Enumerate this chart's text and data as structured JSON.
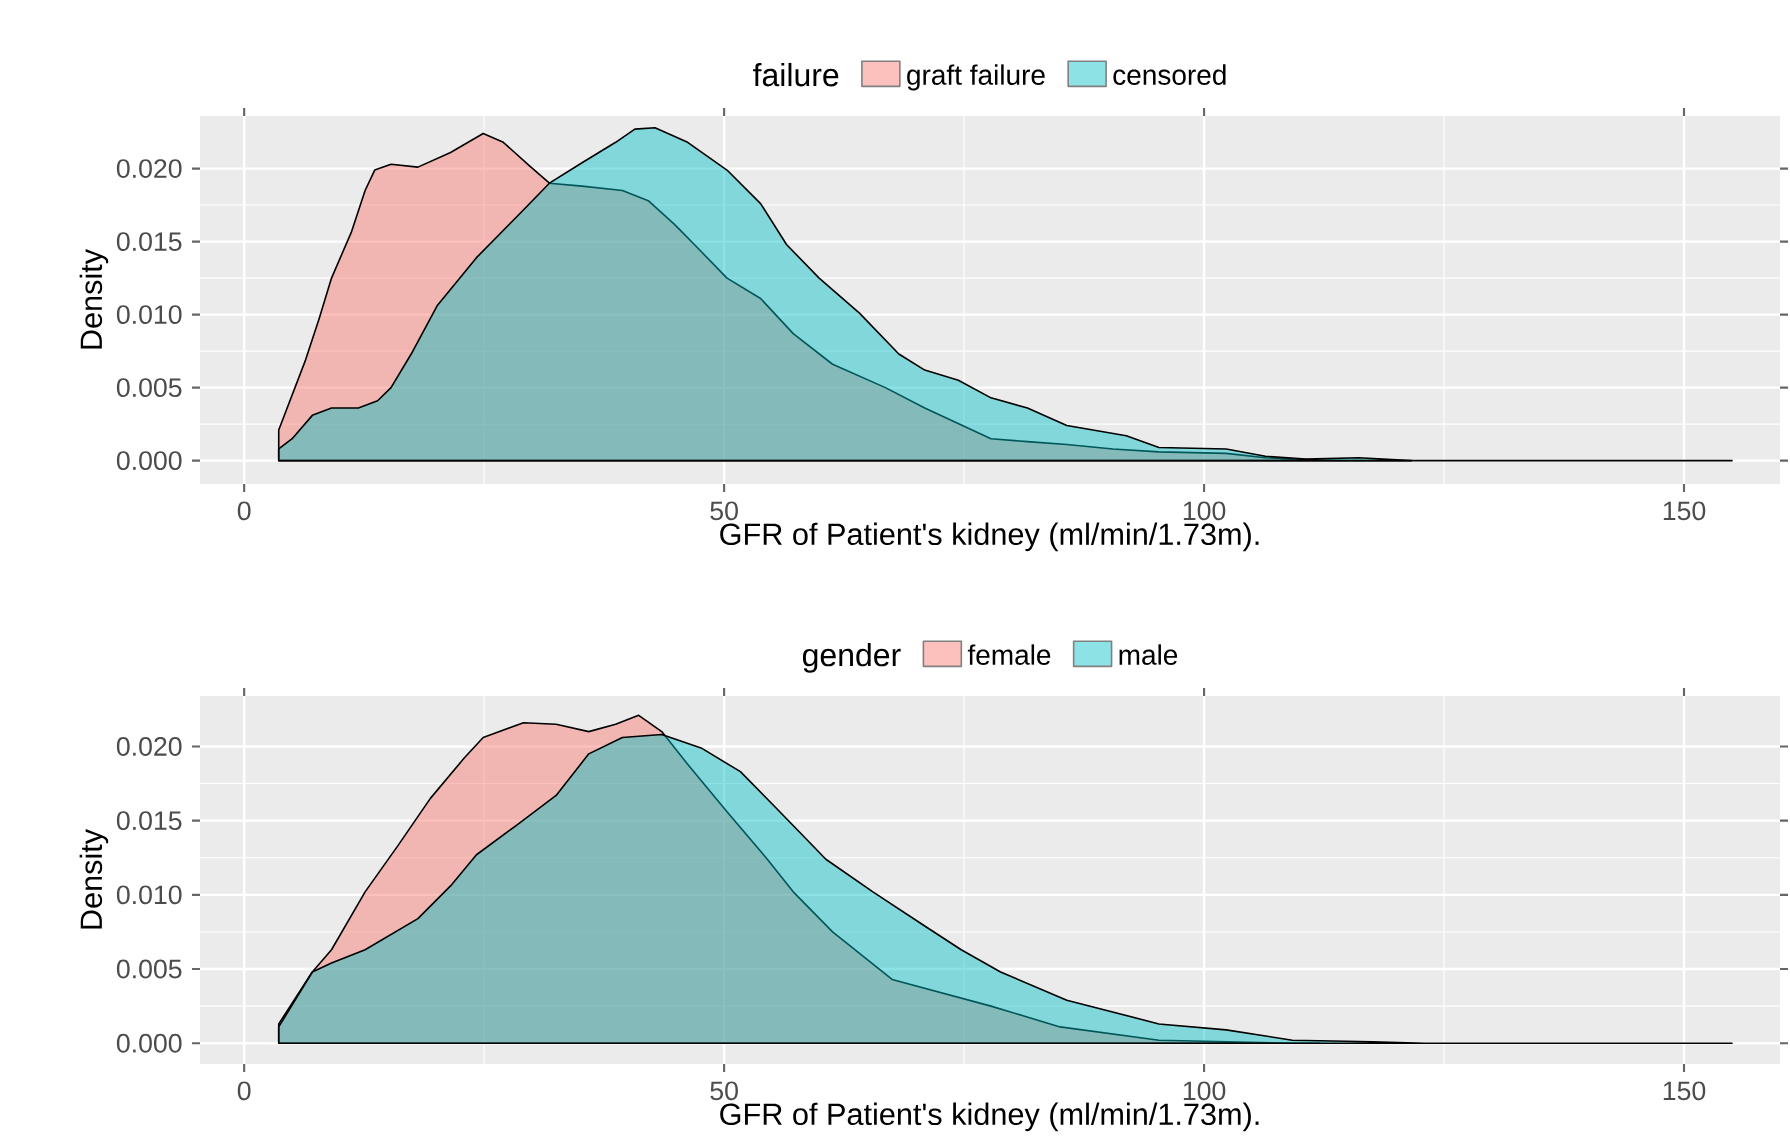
{
  "chart_data": [
    {
      "type": "area",
      "xlabel": "GFR of Patient's kidney  (ml/min/1.73m).",
      "ylabel": "Density",
      "legend_title": "failure",
      "legend": "top",
      "grid": true,
      "xlim": [
        -4.6,
        160
      ],
      "ylim": [
        -0.0016,
        0.0236
      ],
      "xticks": [
        0,
        50,
        100,
        150
      ],
      "yticks": [
        {
          "value": 0,
          "label": "0.000"
        },
        {
          "value": 0.005,
          "label": "0.005"
        },
        {
          "value": 0.01,
          "label": "0.010"
        },
        {
          "value": 0.015,
          "label": "0.015"
        },
        {
          "value": 0.02,
          "label": "0.020"
        }
      ],
      "series": [
        {
          "name": "graft failure",
          "color": "#F8766D",
          "x": [
            3.6,
            6.4,
            7.8,
            9.1,
            11.2,
            12.6,
            13.6,
            15.3,
            18.1,
            21.5,
            24.9,
            27.0,
            29.7,
            31.8,
            35.2,
            39.4,
            42.1,
            44.8,
            46.9,
            50.3,
            53.8,
            57.2,
            61.3,
            66.8,
            70.9,
            77.8,
            81.6,
            85.7,
            90.5,
            95.3,
            102.3,
            106.4,
            112.6,
            121.6
          ],
          "values": [
            0.0021,
            0.0069,
            0.0097,
            0.0125,
            0.0157,
            0.0185,
            0.0199,
            0.0203,
            0.0201,
            0.0211,
            0.0224,
            0.0218,
            0.0202,
            0.019,
            0.0188,
            0.0185,
            0.0178,
            0.0162,
            0.0148,
            0.0125,
            0.0111,
            0.0087,
            0.0066,
            0.005,
            0.0036,
            0.0015,
            0.0013,
            0.0011,
            0.0008,
            0.0006,
            0.0005,
            0.0002,
            0,
            0
          ]
        },
        {
          "name": "censored",
          "color": "#00BFC4",
          "x": [
            3.6,
            5.0,
            7.1,
            9.1,
            11.9,
            13.9,
            15.3,
            17.4,
            20.1,
            24.2,
            28.4,
            31.8,
            35.2,
            38.7,
            40.7,
            42.8,
            46.2,
            50.3,
            53.8,
            56.5,
            59.9,
            64.1,
            68.2,
            70.9,
            74.4,
            77.8,
            81.6,
            85.7,
            91.9,
            95.3,
            102.3,
            106.4,
            110.6,
            116.1,
            121.6,
            155.0
          ],
          "values": [
            0.0008,
            0.0015,
            0.0031,
            0.0036,
            0.0036,
            0.0041,
            0.005,
            0.0073,
            0.0106,
            0.0139,
            0.0167,
            0.019,
            0.0204,
            0.0218,
            0.0227,
            0.0228,
            0.0218,
            0.0199,
            0.0176,
            0.0148,
            0.0125,
            0.0101,
            0.0073,
            0.0062,
            0.0055,
            0.0043,
            0.0036,
            0.0024,
            0.0017,
            0.0009,
            0.0008,
            0.0003,
            0.0001,
            0.0002,
            0,
            0
          ]
        }
      ]
    },
    {
      "type": "area",
      "xlabel": "GFR of Patient's kidney  (ml/min/1.73m).",
      "ylabel": "Density",
      "legend_title": "gender",
      "legend": "top",
      "grid": true,
      "xlim": [
        -4.6,
        160
      ],
      "ylim": [
        -0.0014,
        0.0234
      ],
      "xticks": [
        0,
        50,
        100,
        150
      ],
      "yticks": [
        {
          "value": 0,
          "label": "0.000"
        },
        {
          "value": 0.005,
          "label": "0.005"
        },
        {
          "value": 0.01,
          "label": "0.010"
        },
        {
          "value": 0.015,
          "label": "0.015"
        },
        {
          "value": 0.02,
          "label": "0.020"
        }
      ],
      "series": [
        {
          "name": "female",
          "color": "#F8766D",
          "x": [
            3.6,
            7.1,
            9.1,
            12.6,
            16.0,
            19.4,
            22.9,
            24.9,
            29.1,
            32.5,
            35.9,
            38.7,
            41.1,
            43.5,
            46.2,
            50.3,
            54.5,
            57.2,
            61.3,
            67.5,
            77.8,
            85.0,
            95.3,
            109.2,
            112.0
          ],
          "values": [
            0.0013,
            0.0048,
            0.0063,
            0.0102,
            0.0133,
            0.0165,
            0.0192,
            0.0206,
            0.0216,
            0.0215,
            0.021,
            0.0215,
            0.0221,
            0.021,
            0.0188,
            0.0156,
            0.0124,
            0.0102,
            0.0075,
            0.0043,
            0.0025,
            0.0011,
            0.0002,
            0,
            0
          ]
        },
        {
          "name": "male",
          "color": "#00BFC4",
          "x": [
            3.6,
            7.1,
            9.1,
            12.6,
            18.1,
            21.5,
            24.2,
            28.4,
            32.5,
            35.9,
            39.4,
            43.5,
            47.6,
            51.7,
            55.8,
            60.6,
            65.5,
            70.9,
            74.7,
            78.8,
            85.7,
            95.3,
            102.3,
            109.2,
            117.5,
            123.0,
            155.0
          ],
          "values": [
            0.0011,
            0.0048,
            0.0054,
            0.0063,
            0.0084,
            0.0106,
            0.0127,
            0.0147,
            0.0167,
            0.0195,
            0.0206,
            0.0208,
            0.0199,
            0.0183,
            0.0156,
            0.0124,
            0.0102,
            0.0079,
            0.0063,
            0.0048,
            0.0029,
            0.0013,
            0.0009,
            0.0002,
            0.0001,
            0,
            0
          ]
        }
      ]
    }
  ]
}
